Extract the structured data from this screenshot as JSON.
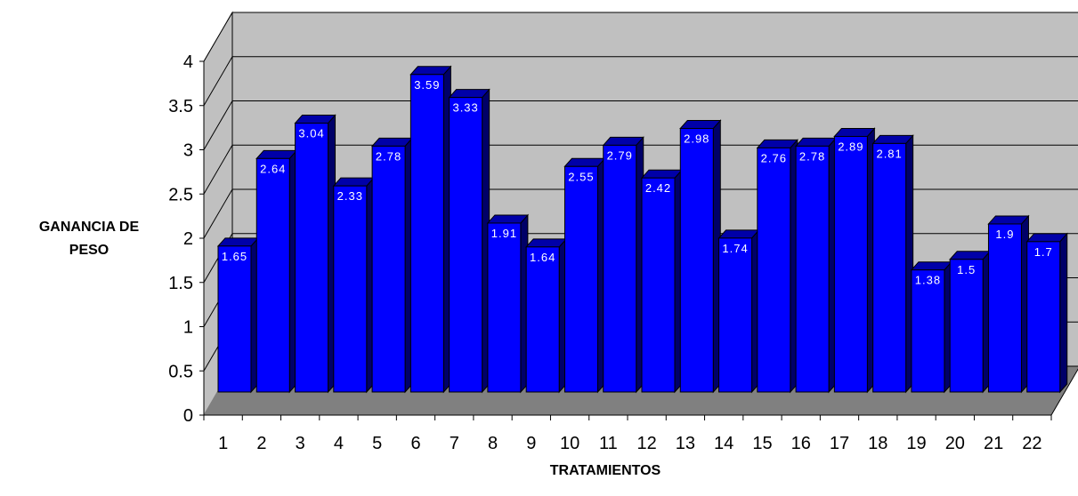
{
  "chart_data": {
    "type": "bar",
    "title": "",
    "xlabel": "TRATAMIENTOS",
    "ylabel_lines": [
      "GANANCIA DE",
      "PESO"
    ],
    "categories": [
      "1",
      "2",
      "3",
      "4",
      "5",
      "6",
      "7",
      "8",
      "9",
      "10",
      "11",
      "12",
      "13",
      "14",
      "15",
      "16",
      "17",
      "18",
      "19",
      "20",
      "21",
      "22"
    ],
    "values": [
      1.65,
      2.64,
      3.04,
      2.33,
      2.78,
      3.59,
      3.33,
      1.91,
      1.64,
      2.55,
      2.79,
      2.42,
      2.98,
      1.74,
      2.76,
      2.78,
      2.89,
      2.81,
      1.38,
      1.5,
      1.9,
      1.7
    ],
    "data_labels": [
      "1.65",
      "2.64",
      "3.04",
      "2.33",
      "2.78",
      "3.59",
      "3.33",
      "1.91",
      "1.64",
      "2.55",
      "2.79",
      "2.42",
      "2.98",
      "1.74",
      "2.76",
      "2.78",
      "2.89",
      "2.81",
      "1.38",
      "1.5",
      "1.9",
      "1.7"
    ],
    "yticks": [
      "0",
      "0.5",
      "1",
      "1.5",
      "2",
      "2.5",
      "3",
      "3.5",
      "4"
    ],
    "ylim": [
      0,
      4
    ],
    "grid": true,
    "style": "3d-column",
    "colors": {
      "bar_front": "#0000ff",
      "bar_top": "#0000a8",
      "bar_side": "#000068",
      "wall": "#c0c0c0",
      "floor": "#808080",
      "grid": "#000000"
    }
  }
}
